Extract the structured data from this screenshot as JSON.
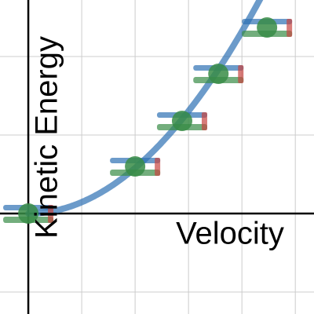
{
  "chart_data": {
    "type": "scatter",
    "x_label": "Velocity",
    "y_label": "Kinetic Energy",
    "x": [
      0,
      2,
      2.88,
      3.56,
      4.47
    ],
    "y": [
      0,
      0.6,
      1.18,
      1.78,
      2.37
    ],
    "xlim": [
      -0.53,
      5.35
    ],
    "ylim": [
      -1.28,
      2.72
    ],
    "xticks": [
      1,
      2,
      3,
      4,
      5
    ],
    "yticks": [
      -1,
      1,
      2
    ],
    "grid": true,
    "fit": {
      "type": "quadratic",
      "a": 0.145,
      "color": "#2d70b3"
    },
    "marker_colors": {
      "point": "#388c46",
      "upper": "#2d70b3",
      "lower": "#388c46",
      "end": "#c74440"
    }
  }
}
